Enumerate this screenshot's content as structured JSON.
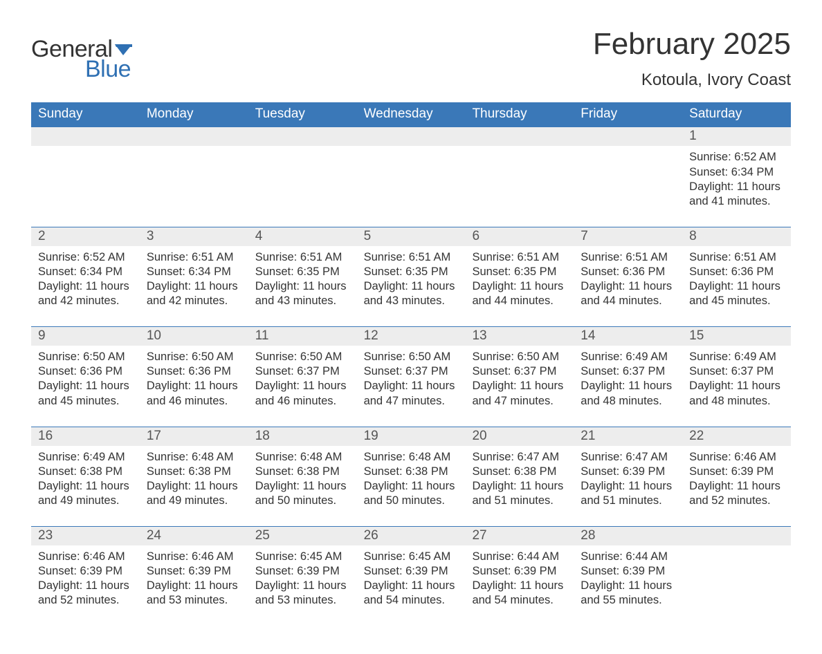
{
  "logo": {
    "word1": "General",
    "word2": "Blue",
    "flag_color": "#2f70b3",
    "text1_color": "#333333",
    "text2_color": "#2f70b3"
  },
  "title": "February 2025",
  "location": "Kotoula, Ivory Coast",
  "colors": {
    "header_bg": "#3a78b8",
    "header_text": "#ffffff",
    "day_number_bg": "#ededed",
    "text": "#333333",
    "row_divider": "#3a78b8",
    "page_bg": "#ffffff"
  },
  "typography": {
    "title_fontsize": 44,
    "location_fontsize": 24,
    "weekday_fontsize": 19,
    "daynum_fontsize": 19,
    "body_fontsize": 16.5,
    "logo_fontsize": 34
  },
  "weekdays": [
    "Sunday",
    "Monday",
    "Tuesday",
    "Wednesday",
    "Thursday",
    "Friday",
    "Saturday"
  ],
  "weeks": [
    [
      null,
      null,
      null,
      null,
      null,
      null,
      {
        "day": "1",
        "sunrise": "Sunrise: 6:52 AM",
        "sunset": "Sunset: 6:34 PM",
        "daylight1": "Daylight: 11 hours",
        "daylight2": "and 41 minutes."
      }
    ],
    [
      {
        "day": "2",
        "sunrise": "Sunrise: 6:52 AM",
        "sunset": "Sunset: 6:34 PM",
        "daylight1": "Daylight: 11 hours",
        "daylight2": "and 42 minutes."
      },
      {
        "day": "3",
        "sunrise": "Sunrise: 6:51 AM",
        "sunset": "Sunset: 6:34 PM",
        "daylight1": "Daylight: 11 hours",
        "daylight2": "and 42 minutes."
      },
      {
        "day": "4",
        "sunrise": "Sunrise: 6:51 AM",
        "sunset": "Sunset: 6:35 PM",
        "daylight1": "Daylight: 11 hours",
        "daylight2": "and 43 minutes."
      },
      {
        "day": "5",
        "sunrise": "Sunrise: 6:51 AM",
        "sunset": "Sunset: 6:35 PM",
        "daylight1": "Daylight: 11 hours",
        "daylight2": "and 43 minutes."
      },
      {
        "day": "6",
        "sunrise": "Sunrise: 6:51 AM",
        "sunset": "Sunset: 6:35 PM",
        "daylight1": "Daylight: 11 hours",
        "daylight2": "and 44 minutes."
      },
      {
        "day": "7",
        "sunrise": "Sunrise: 6:51 AM",
        "sunset": "Sunset: 6:36 PM",
        "daylight1": "Daylight: 11 hours",
        "daylight2": "and 44 minutes."
      },
      {
        "day": "8",
        "sunrise": "Sunrise: 6:51 AM",
        "sunset": "Sunset: 6:36 PM",
        "daylight1": "Daylight: 11 hours",
        "daylight2": "and 45 minutes."
      }
    ],
    [
      {
        "day": "9",
        "sunrise": "Sunrise: 6:50 AM",
        "sunset": "Sunset: 6:36 PM",
        "daylight1": "Daylight: 11 hours",
        "daylight2": "and 45 minutes."
      },
      {
        "day": "10",
        "sunrise": "Sunrise: 6:50 AM",
        "sunset": "Sunset: 6:36 PM",
        "daylight1": "Daylight: 11 hours",
        "daylight2": "and 46 minutes."
      },
      {
        "day": "11",
        "sunrise": "Sunrise: 6:50 AM",
        "sunset": "Sunset: 6:37 PM",
        "daylight1": "Daylight: 11 hours",
        "daylight2": "and 46 minutes."
      },
      {
        "day": "12",
        "sunrise": "Sunrise: 6:50 AM",
        "sunset": "Sunset: 6:37 PM",
        "daylight1": "Daylight: 11 hours",
        "daylight2": "and 47 minutes."
      },
      {
        "day": "13",
        "sunrise": "Sunrise: 6:50 AM",
        "sunset": "Sunset: 6:37 PM",
        "daylight1": "Daylight: 11 hours",
        "daylight2": "and 47 minutes."
      },
      {
        "day": "14",
        "sunrise": "Sunrise: 6:49 AM",
        "sunset": "Sunset: 6:37 PM",
        "daylight1": "Daylight: 11 hours",
        "daylight2": "and 48 minutes."
      },
      {
        "day": "15",
        "sunrise": "Sunrise: 6:49 AM",
        "sunset": "Sunset: 6:37 PM",
        "daylight1": "Daylight: 11 hours",
        "daylight2": "and 48 minutes."
      }
    ],
    [
      {
        "day": "16",
        "sunrise": "Sunrise: 6:49 AM",
        "sunset": "Sunset: 6:38 PM",
        "daylight1": "Daylight: 11 hours",
        "daylight2": "and 49 minutes."
      },
      {
        "day": "17",
        "sunrise": "Sunrise: 6:48 AM",
        "sunset": "Sunset: 6:38 PM",
        "daylight1": "Daylight: 11 hours",
        "daylight2": "and 49 minutes."
      },
      {
        "day": "18",
        "sunrise": "Sunrise: 6:48 AM",
        "sunset": "Sunset: 6:38 PM",
        "daylight1": "Daylight: 11 hours",
        "daylight2": "and 50 minutes."
      },
      {
        "day": "19",
        "sunrise": "Sunrise: 6:48 AM",
        "sunset": "Sunset: 6:38 PM",
        "daylight1": "Daylight: 11 hours",
        "daylight2": "and 50 minutes."
      },
      {
        "day": "20",
        "sunrise": "Sunrise: 6:47 AM",
        "sunset": "Sunset: 6:38 PM",
        "daylight1": "Daylight: 11 hours",
        "daylight2": "and 51 minutes."
      },
      {
        "day": "21",
        "sunrise": "Sunrise: 6:47 AM",
        "sunset": "Sunset: 6:39 PM",
        "daylight1": "Daylight: 11 hours",
        "daylight2": "and 51 minutes."
      },
      {
        "day": "22",
        "sunrise": "Sunrise: 6:46 AM",
        "sunset": "Sunset: 6:39 PM",
        "daylight1": "Daylight: 11 hours",
        "daylight2": "and 52 minutes."
      }
    ],
    [
      {
        "day": "23",
        "sunrise": "Sunrise: 6:46 AM",
        "sunset": "Sunset: 6:39 PM",
        "daylight1": "Daylight: 11 hours",
        "daylight2": "and 52 minutes."
      },
      {
        "day": "24",
        "sunrise": "Sunrise: 6:46 AM",
        "sunset": "Sunset: 6:39 PM",
        "daylight1": "Daylight: 11 hours",
        "daylight2": "and 53 minutes."
      },
      {
        "day": "25",
        "sunrise": "Sunrise: 6:45 AM",
        "sunset": "Sunset: 6:39 PM",
        "daylight1": "Daylight: 11 hours",
        "daylight2": "and 53 minutes."
      },
      {
        "day": "26",
        "sunrise": "Sunrise: 6:45 AM",
        "sunset": "Sunset: 6:39 PM",
        "daylight1": "Daylight: 11 hours",
        "daylight2": "and 54 minutes."
      },
      {
        "day": "27",
        "sunrise": "Sunrise: 6:44 AM",
        "sunset": "Sunset: 6:39 PM",
        "daylight1": "Daylight: 11 hours",
        "daylight2": "and 54 minutes."
      },
      {
        "day": "28",
        "sunrise": "Sunrise: 6:44 AM",
        "sunset": "Sunset: 6:39 PM",
        "daylight1": "Daylight: 11 hours",
        "daylight2": "and 55 minutes."
      },
      null
    ]
  ]
}
